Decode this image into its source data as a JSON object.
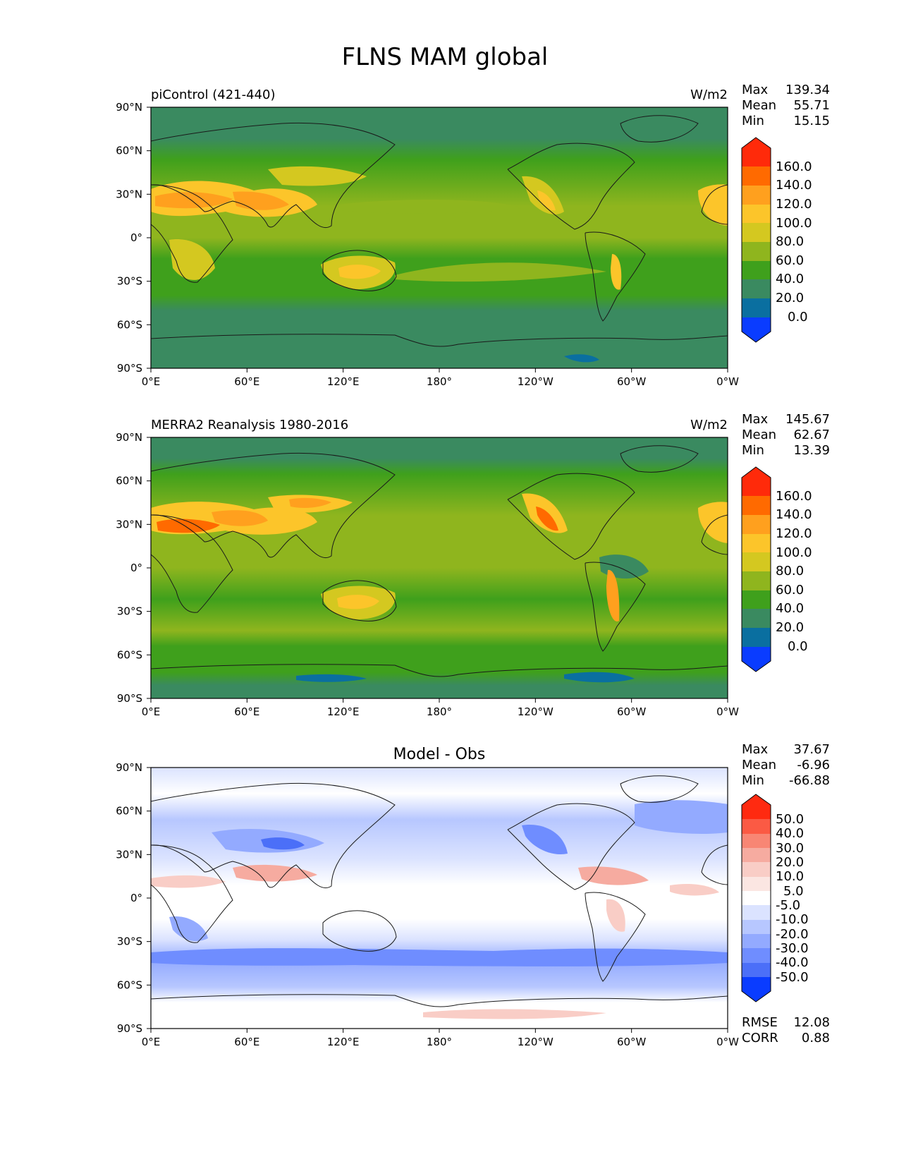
{
  "figure": {
    "title": "FLNS MAM global"
  },
  "axes": {
    "lat_ticks": [
      "90°N",
      "60°N",
      "30°N",
      "0°",
      "30°S",
      "60°S",
      "90°S"
    ],
    "lon_ticks": [
      "0°E",
      "60°E",
      "120°E",
      "180°",
      "120°W",
      "60°W",
      "0°W"
    ],
    "lat_range": [
      -90,
      90
    ],
    "lon_range": [
      0,
      360
    ]
  },
  "stat_labels": {
    "max": "Max",
    "mean": "Mean",
    "min": "Min",
    "rmse": "RMSE",
    "corr": "CORR"
  },
  "panels": [
    {
      "id": "model",
      "left_title": "piControl (421-440)",
      "center_title": "",
      "units": "W/m2",
      "stats": {
        "max": "139.34",
        "mean": "55.71",
        "min": "15.15"
      },
      "colorbar": {
        "labels": [
          "160.0",
          "140.0",
          "120.0",
          "100.0",
          "80.0",
          "60.0",
          "40.0",
          "20.0",
          "0.0"
        ],
        "colors": [
          "#ff2a0a",
          "#ff6a00",
          "#ffa01e",
          "#fcc52a",
          "#d4c820",
          "#8fb51e",
          "#3fa01c",
          "#3a8a60",
          "#0a6fa0",
          "#0a3cff"
        ]
      }
    },
    {
      "id": "obs",
      "left_title": "MERRA2 Reanalysis 1980-2016",
      "center_title": "",
      "units": "W/m2",
      "stats": {
        "max": "145.67",
        "mean": "62.67",
        "min": "13.39"
      },
      "colorbar": {
        "labels": [
          "160.0",
          "140.0",
          "120.0",
          "100.0",
          "80.0",
          "60.0",
          "40.0",
          "20.0",
          "0.0"
        ],
        "colors": [
          "#ff2a0a",
          "#ff6a00",
          "#ffa01e",
          "#fcc52a",
          "#d4c820",
          "#8fb51e",
          "#3fa01c",
          "#3a8a60",
          "#0a6fa0",
          "#0a3cff"
        ]
      }
    },
    {
      "id": "diff",
      "left_title": "",
      "center_title": "Model - Obs",
      "units": "",
      "stats": {
        "max": "37.67",
        "mean": "-6.96",
        "min": "-66.88",
        "rmse": "12.08",
        "corr": "0.88"
      },
      "colorbar": {
        "labels": [
          "50.0",
          "40.0",
          "30.0",
          "20.0",
          "10.0",
          "5.0",
          "-5.0",
          "-10.0",
          "-20.0",
          "-30.0",
          "-40.0",
          "-50.0"
        ],
        "colors": [
          "#ff2a10",
          "#fb5a44",
          "#f88674",
          "#f6aba0",
          "#f9cdc6",
          "#fbe6e2",
          "#ffffff",
          "#dbe3ff",
          "#b7c7ff",
          "#93aaff",
          "#6f8dff",
          "#4b6ff8",
          "#0a3cff"
        ]
      }
    }
  ]
}
